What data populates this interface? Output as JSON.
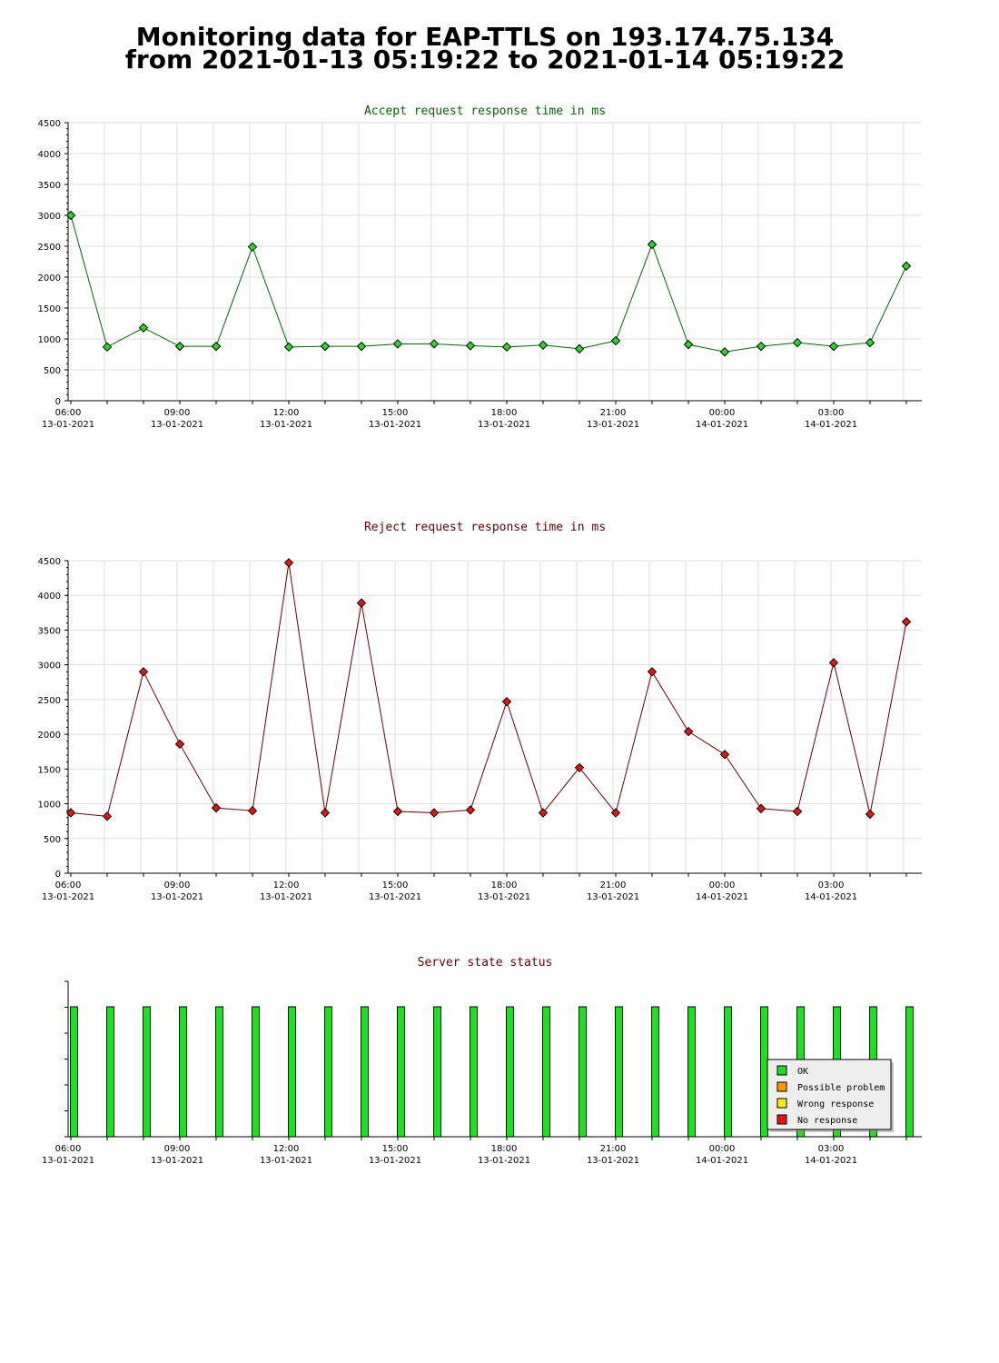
{
  "page": {
    "title_line1": "Monitoring data for EAP-TTLS on 193.174.75.134",
    "title_line2": "from 2021-01-13 05:19:22 to 2021-01-14 05:19:22"
  },
  "colors": {
    "accept_title": "#006600",
    "reject_title": "#660000",
    "status_title": "#660000",
    "accept_line": "#006600",
    "accept_marker": "#22dd22",
    "reject_line": "#660000",
    "reject_marker": "#ee1111",
    "ok": "#22dd22",
    "possible_problem": "#ff9900",
    "wrong_response": "#ffee00",
    "no_response": "#ee1111",
    "grid": "#dddddd"
  },
  "x_axis": {
    "tick_labels": [
      {
        "time": "06:00",
        "date": "13-01-2021"
      },
      {
        "time": "09:00",
        "date": "13-01-2021"
      },
      {
        "time": "12:00",
        "date": "13-01-2021"
      },
      {
        "time": "15:00",
        "date": "13-01-2021"
      },
      {
        "time": "18:00",
        "date": "13-01-2021"
      },
      {
        "time": "21:00",
        "date": "13-01-2021"
      },
      {
        "time": "00:00",
        "date": "14-01-2021"
      },
      {
        "time": "03:00",
        "date": "14-01-2021"
      }
    ]
  },
  "chart_data": [
    {
      "type": "line",
      "title": "Accept request response time in ms",
      "xlabel": "",
      "ylabel": "",
      "ylim": [
        0,
        4500
      ],
      "y_ticks": [
        0,
        500,
        1000,
        1500,
        2000,
        2500,
        3000,
        3500,
        4000,
        4500
      ],
      "grid": true,
      "x": [
        "13-01-2021 06:00",
        "13-01-2021 07:00",
        "13-01-2021 08:00",
        "13-01-2021 09:00",
        "13-01-2021 10:00",
        "13-01-2021 11:00",
        "13-01-2021 12:00",
        "13-01-2021 13:00",
        "13-01-2021 14:00",
        "13-01-2021 15:00",
        "13-01-2021 16:00",
        "13-01-2021 17:00",
        "13-01-2021 18:00",
        "13-01-2021 19:00",
        "13-01-2021 20:00",
        "13-01-2021 21:00",
        "13-01-2021 22:00",
        "13-01-2021 23:00",
        "14-01-2021 00:00",
        "14-01-2021 01:00",
        "14-01-2021 02:00",
        "14-01-2021 03:00",
        "14-01-2021 04:00",
        "14-01-2021 05:00"
      ],
      "values": [
        3000,
        870,
        1180,
        880,
        880,
        2490,
        870,
        880,
        880,
        920,
        920,
        890,
        870,
        900,
        840,
        970,
        2530,
        910,
        790,
        880,
        940,
        880,
        940,
        2180
      ]
    },
    {
      "type": "line",
      "title": "Reject request response time in ms",
      "xlabel": "",
      "ylabel": "",
      "ylim": [
        0,
        4500
      ],
      "y_ticks": [
        0,
        500,
        1000,
        1500,
        2000,
        2500,
        3000,
        3500,
        4000,
        4500
      ],
      "grid": true,
      "x": [
        "13-01-2021 06:00",
        "13-01-2021 07:00",
        "13-01-2021 08:00",
        "13-01-2021 09:00",
        "13-01-2021 10:00",
        "13-01-2021 11:00",
        "13-01-2021 12:00",
        "13-01-2021 13:00",
        "13-01-2021 14:00",
        "13-01-2021 15:00",
        "13-01-2021 16:00",
        "13-01-2021 17:00",
        "13-01-2021 18:00",
        "13-01-2021 19:00",
        "13-01-2021 20:00",
        "13-01-2021 21:00",
        "13-01-2021 22:00",
        "13-01-2021 23:00",
        "14-01-2021 00:00",
        "14-01-2021 01:00",
        "14-01-2021 02:00",
        "14-01-2021 03:00",
        "14-01-2021 04:00",
        "14-01-2021 05:00"
      ],
      "values": [
        870,
        820,
        2900,
        1860,
        940,
        900,
        4470,
        870,
        3890,
        890,
        870,
        910,
        2470,
        870,
        1520,
        870,
        2900,
        2040,
        1710,
        930,
        890,
        3030,
        850,
        3620
      ]
    },
    {
      "type": "bar",
      "title": "Server state status",
      "xlabel": "",
      "ylabel": "",
      "grid": false,
      "legend_position": "bottom-right",
      "legend": [
        "OK",
        "Possible problem",
        "Wrong response",
        "No response"
      ],
      "x": [
        "13-01-2021 06:00",
        "13-01-2021 07:00",
        "13-01-2021 08:00",
        "13-01-2021 09:00",
        "13-01-2021 10:00",
        "13-01-2021 11:00",
        "13-01-2021 12:00",
        "13-01-2021 13:00",
        "13-01-2021 14:00",
        "13-01-2021 15:00",
        "13-01-2021 16:00",
        "13-01-2021 17:00",
        "13-01-2021 18:00",
        "13-01-2021 19:00",
        "13-01-2021 20:00",
        "13-01-2021 21:00",
        "13-01-2021 22:00",
        "13-01-2021 23:00",
        "14-01-2021 00:00",
        "14-01-2021 01:00",
        "14-01-2021 02:00",
        "14-01-2021 03:00",
        "14-01-2021 04:00",
        "14-01-2021 05:00"
      ],
      "states": [
        "OK",
        "OK",
        "OK",
        "OK",
        "OK",
        "OK",
        "OK",
        "OK",
        "OK",
        "OK",
        "OK",
        "OK",
        "OK",
        "OK",
        "OK",
        "OK",
        "OK",
        "OK",
        "OK",
        "OK",
        "OK",
        "OK",
        "OK",
        "OK"
      ]
    }
  ]
}
